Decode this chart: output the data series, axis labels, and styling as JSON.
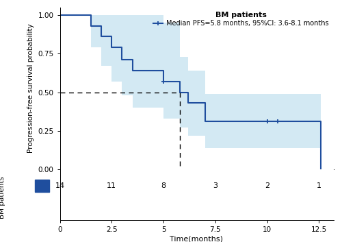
{
  "km_times": [
    0,
    0.5,
    1.5,
    2.0,
    2.5,
    3.0,
    3.5,
    4.0,
    5.0,
    5.8,
    6.2,
    6.5,
    7.0,
    8.0,
    10.0,
    10.5,
    12.5,
    12.6
  ],
  "km_surv": [
    1.0,
    1.0,
    0.93,
    0.86,
    0.79,
    0.71,
    0.64,
    0.64,
    0.57,
    0.5,
    0.43,
    0.43,
    0.31,
    0.31,
    0.31,
    0.31,
    0.31,
    0.0
  ],
  "km_lower": [
    1.0,
    1.0,
    0.79,
    0.67,
    0.57,
    0.48,
    0.4,
    0.4,
    0.33,
    0.27,
    0.22,
    0.22,
    0.14,
    0.14,
    0.14,
    0.14,
    0.14,
    0.0
  ],
  "km_upper": [
    1.0,
    1.0,
    1.0,
    1.0,
    1.0,
    1.0,
    1.0,
    1.0,
    0.95,
    0.73,
    0.64,
    0.64,
    0.49,
    0.49,
    0.49,
    0.49,
    0.49,
    0.0
  ],
  "censored_times": [
    5.0,
    10.0,
    10.5
  ],
  "censored_surv": [
    0.57,
    0.31,
    0.31
  ],
  "median_pfs": 5.8,
  "risk_times": [
    0,
    2.5,
    5.0,
    7.5,
    10.0,
    12.5
  ],
  "risk_counts": [
    14,
    11,
    8,
    3,
    2,
    1
  ],
  "xlabel": "Time(months)",
  "ylabel": "Progression-free survival probability",
  "legend_title": "BM patients",
  "legend_label": "Median PFS=5.8 months, 95%CI: 3.6-8.1 months",
  "line_color": "#1f4e9e",
  "ci_color": "#c8e4f0",
  "ci_alpha": 0.8,
  "xlim": [
    0,
    13.2
  ],
  "ylim": [
    0.0,
    1.05
  ],
  "xticks": [
    0,
    2.5,
    5.0,
    7.5,
    10.0,
    12.5
  ],
  "yticks": [
    0.0,
    0.25,
    0.5,
    0.75,
    1.0
  ],
  "risk_label": "BM patients",
  "blue_rect_color": "#1f4e9e"
}
